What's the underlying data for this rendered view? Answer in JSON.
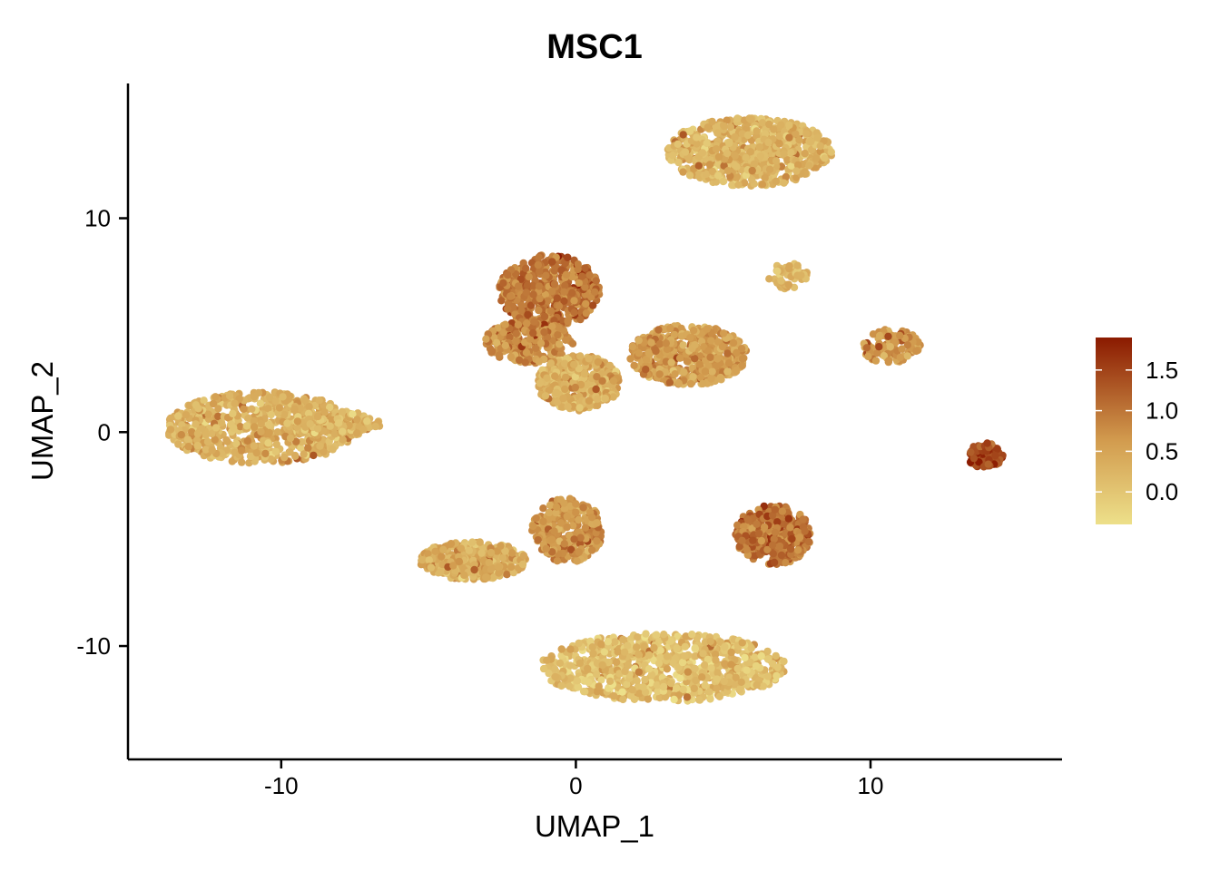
{
  "chart_data": {
    "type": "scatter",
    "title": "MSC1",
    "xlabel": "UMAP_1",
    "ylabel": "UMAP_2",
    "xlim": [
      -15.2,
      16.5
    ],
    "ylim": [
      -15.3,
      16.3
    ],
    "x_ticks": [
      -10,
      0,
      10
    ],
    "y_ticks": [
      10,
      0,
      -10
    ],
    "x_tick_labels": [
      "-10",
      "0",
      "10"
    ],
    "y_tick_labels": [
      "10",
      "0",
      "-10"
    ],
    "grid": false,
    "legend_position": "right",
    "colorbar": {
      "min": -0.4,
      "max": 1.9,
      "ticks": [
        1.5,
        1.0,
        0.5,
        0.0
      ],
      "tick_labels": [
        "1.5",
        "1.0",
        "0.5",
        "0.0"
      ],
      "low_color": "#ede08a",
      "mid_color": "#d29b4e",
      "high_color": "#8b1a00"
    },
    "clusters": [
      {
        "center": [
          -10.7,
          0.2
        ],
        "spread": [
          3.2,
          1.7
        ],
        "expression": 0.3,
        "n": 700
      },
      {
        "center": [
          -8.2,
          0.4
        ],
        "spread": [
          1.6,
          0.6
        ],
        "expression": 0.25,
        "n": 150
      },
      {
        "center": [
          -0.9,
          6.6
        ],
        "spread": [
          1.7,
          1.7
        ],
        "expression": 0.95,
        "n": 550
      },
      {
        "center": [
          -1.6,
          4.2
        ],
        "spread": [
          1.5,
          1.0
        ],
        "expression": 0.75,
        "n": 250
      },
      {
        "center": [
          0.1,
          2.3
        ],
        "spread": [
          1.4,
          1.3
        ],
        "expression": 0.3,
        "n": 400
      },
      {
        "center": [
          3.8,
          3.6
        ],
        "spread": [
          2.0,
          1.4
        ],
        "expression": 0.6,
        "n": 550
      },
      {
        "center": [
          5.9,
          13.1
        ],
        "spread": [
          2.8,
          1.6
        ],
        "expression": 0.25,
        "n": 650
      },
      {
        "center": [
          7.2,
          7.3
        ],
        "spread": [
          0.7,
          0.6
        ],
        "expression": 0.2,
        "n": 60
      },
      {
        "center": [
          10.7,
          4.0
        ],
        "spread": [
          1.0,
          0.8
        ],
        "expression": 0.6,
        "n": 110
      },
      {
        "center": [
          13.9,
          -1.1
        ],
        "spread": [
          0.6,
          0.6
        ],
        "expression": 1.45,
        "n": 90
      },
      {
        "center": [
          6.7,
          -4.8
        ],
        "spread": [
          1.3,
          1.4
        ],
        "expression": 1.0,
        "n": 380
      },
      {
        "center": [
          -3.5,
          -6.0
        ],
        "spread": [
          1.8,
          0.9
        ],
        "expression": 0.35,
        "n": 350
      },
      {
        "center": [
          -0.3,
          -4.6
        ],
        "spread": [
          1.2,
          1.5
        ],
        "expression": 0.65,
        "n": 300
      },
      {
        "center": [
          3.0,
          -11.0
        ],
        "spread": [
          4.2,
          1.6
        ],
        "expression": 0.1,
        "n": 850
      }
    ]
  }
}
